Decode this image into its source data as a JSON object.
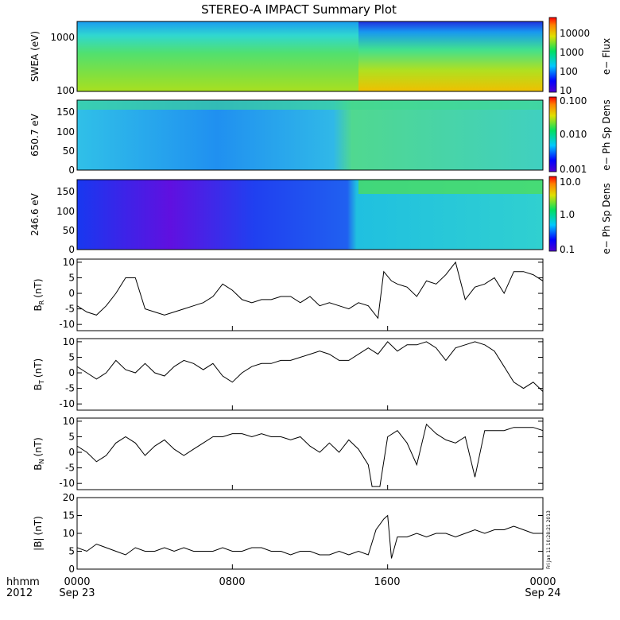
{
  "title": "STEREO-A IMPACT Summary Plot",
  "x_axis": {
    "corner_labels": [
      "hhmm",
      "2012"
    ],
    "ticks": [
      {
        "label": "0000",
        "sublabel": "Sep 23",
        "hour": 0
      },
      {
        "label": "0800",
        "sublabel": "",
        "hour": 8
      },
      {
        "label": "1600",
        "sublabel": "",
        "hour": 16
      },
      {
        "label": "0000",
        "sublabel": "Sep 24",
        "hour": 24
      }
    ],
    "range_hours": [
      0,
      24
    ]
  },
  "side_stamp": "Fri Jan 11 10:28:21 2013",
  "colors": {
    "line": "#000000",
    "spectro_low": "#0000ff",
    "spectro_high": "#ff0000"
  },
  "chart_data": [
    {
      "type": "heatmap",
      "panel": "swea",
      "ylabel": "SWEA (eV)",
      "yscale": "log",
      "ylim": [
        100,
        1700
      ],
      "yticks": [
        "1000",
        "100"
      ],
      "colorbar_label": "e− Flux",
      "colorbar_ticks": [
        "10000",
        "1000",
        "100",
        "10"
      ],
      "colorbar_range_log": [
        1,
        4.7
      ]
    },
    {
      "type": "heatmap",
      "panel": "pad650",
      "ylabel": "650.7 eV",
      "ylim": [
        0,
        180
      ],
      "yticks": [
        "150",
        "100",
        "50",
        "0"
      ],
      "colorbar_label": "e− Ph Sp Dens",
      "colorbar_ticks": [
        "0.100",
        "0.010",
        "0.001"
      ]
    },
    {
      "type": "heatmap",
      "panel": "pad246",
      "ylabel": "246.6 eV",
      "ylim": [
        0,
        180
      ],
      "yticks": [
        "150",
        "100",
        "50",
        "0"
      ],
      "colorbar_label": "e− Ph Sp Dens",
      "colorbar_ticks": [
        "10.0",
        "1.0",
        "0.1"
      ]
    },
    {
      "type": "line",
      "panel": "br",
      "ylabel": "B",
      "ysub": "R",
      "yunit": "(nT)",
      "ylim": [
        -12,
        11
      ],
      "yticks": [
        "10",
        "5",
        "0",
        "-5",
        "-10"
      ],
      "x": [
        0,
        0.5,
        1,
        1.5,
        2,
        2.5,
        3,
        3.5,
        4,
        4.5,
        5,
        5.5,
        6,
        6.5,
        7,
        7.5,
        8,
        8.5,
        9,
        9.5,
        10,
        10.5,
        11,
        11.5,
        12,
        12.5,
        13,
        13.5,
        14,
        14.5,
        15,
        15.5,
        15.8,
        16.2,
        16.5,
        17,
        17.5,
        18,
        18.5,
        19,
        19.5,
        20,
        20.5,
        21,
        21.5,
        22,
        22.5,
        23,
        23.5,
        24
      ],
      "y": [
        -4,
        -6,
        -7,
        -4,
        0,
        5,
        5,
        -5,
        -6,
        -7,
        -6,
        -5,
        -4,
        -3,
        -1,
        3,
        1,
        -2,
        -3,
        -2,
        -2,
        -1,
        -1,
        -3,
        -1,
        -4,
        -3,
        -4,
        -5,
        -3,
        -4,
        -8,
        7,
        4,
        3,
        2,
        -1,
        4,
        3,
        6,
        10,
        -2,
        2,
        3,
        5,
        0,
        7,
        7,
        6,
        4
      ]
    },
    {
      "type": "line",
      "panel": "bt",
      "ylabel": "B",
      "ysub": "T",
      "yunit": "(nT)",
      "ylim": [
        -12,
        11
      ],
      "yticks": [
        "10",
        "5",
        "0",
        "-5",
        "-10"
      ],
      "x": [
        0,
        0.5,
        1,
        1.5,
        2,
        2.5,
        3,
        3.5,
        4,
        4.5,
        5,
        5.5,
        6,
        6.5,
        7,
        7.5,
        8,
        8.5,
        9,
        9.5,
        10,
        10.5,
        11,
        11.5,
        12,
        12.5,
        13,
        13.5,
        14,
        14.5,
        15,
        15.5,
        16,
        16.5,
        17,
        17.5,
        18,
        18.5,
        19,
        19.5,
        20,
        20.5,
        21,
        21.5,
        22,
        22.5,
        23,
        23.5,
        24
      ],
      "y": [
        2,
        0,
        -2,
        0,
        4,
        1,
        0,
        3,
        0,
        -1,
        2,
        4,
        3,
        1,
        3,
        -1,
        -3,
        0,
        2,
        3,
        3,
        4,
        4,
        5,
        6,
        7,
        6,
        4,
        4,
        6,
        8,
        6,
        10,
        7,
        9,
        9,
        10,
        8,
        4,
        8,
        9,
        10,
        9,
        7,
        2,
        -3,
        -5,
        -3,
        -6
      ]
    },
    {
      "type": "line",
      "panel": "bn",
      "ylabel": "B",
      "ysub": "N",
      "yunit": "(nT)",
      "ylim": [
        -12,
        11
      ],
      "yticks": [
        "10",
        "5",
        "0",
        "-5",
        "-10"
      ],
      "x": [
        0,
        0.5,
        1,
        1.5,
        2,
        2.5,
        3,
        3.5,
        4,
        4.5,
        5,
        5.5,
        6,
        6.5,
        7,
        7.5,
        8,
        8.5,
        9,
        9.5,
        10,
        10.5,
        11,
        11.5,
        12,
        12.5,
        13,
        13.5,
        14,
        14.5,
        15,
        15.2,
        15.6,
        16,
        16.5,
        17,
        17.5,
        18,
        18.5,
        19,
        19.5,
        20,
        20.5,
        21,
        21.5,
        22,
        22.5,
        23,
        23.5,
        24
      ],
      "y": [
        2,
        0,
        -3,
        -1,
        3,
        5,
        3,
        -1,
        2,
        4,
        1,
        -1,
        1,
        3,
        5,
        5,
        6,
        6,
        5,
        6,
        5,
        5,
        4,
        5,
        2,
        0,
        3,
        0,
        4,
        1,
        -4,
        -11,
        -11,
        5,
        7,
        3,
        -4,
        9,
        6,
        4,
        3,
        5,
        -8,
        7,
        7,
        7,
        8,
        8,
        8,
        7
      ]
    },
    {
      "type": "line",
      "panel": "bmag",
      "ylabel": "|B|",
      "yunit": "(nT)",
      "ylim": [
        0,
        20
      ],
      "yticks": [
        "20",
        "15",
        "10",
        "5",
        "0"
      ],
      "x": [
        0,
        0.5,
        1,
        1.5,
        2,
        2.5,
        3,
        3.5,
        4,
        4.5,
        5,
        5.5,
        6,
        6.5,
        7,
        7.5,
        8,
        8.5,
        9,
        9.5,
        10,
        10.5,
        11,
        11.5,
        12,
        12.5,
        13,
        13.5,
        14,
        14.5,
        15,
        15.4,
        15.8,
        16,
        16.2,
        16.5,
        17,
        17.5,
        18,
        18.5,
        19,
        19.5,
        20,
        20.5,
        21,
        21.5,
        22,
        22.5,
        23,
        23.5,
        24
      ],
      "y": [
        6,
        5,
        7,
        6,
        5,
        4,
        6,
        5,
        5,
        6,
        5,
        6,
        5,
        5,
        5,
        6,
        5,
        5,
        6,
        6,
        5,
        5,
        4,
        5,
        5,
        4,
        4,
        5,
        4,
        5,
        4,
        11,
        14,
        15,
        3,
        9,
        9,
        10,
        9,
        10,
        10,
        9,
        10,
        11,
        10,
        11,
        11,
        12,
        11,
        10,
        10
      ]
    }
  ]
}
